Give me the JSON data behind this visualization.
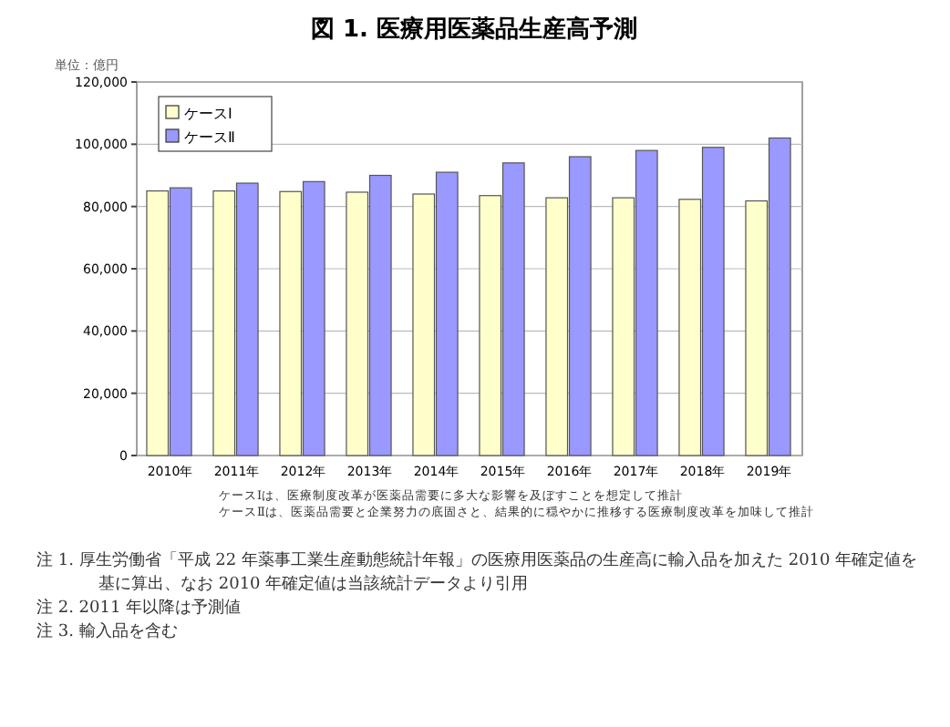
{
  "chart_data": {
    "type": "bar",
    "title": "図 1. 医療用医薬品生産高予測",
    "ylabel": "単位：億円",
    "categories": [
      "2010年",
      "2011年",
      "2012年",
      "2013年",
      "2014年",
      "2015年",
      "2016年",
      "2017年",
      "2018年",
      "2019年"
    ],
    "series": [
      {
        "name": "ケースⅠ",
        "color": "#ffffcc",
        "values": [
          85000,
          85000,
          84800,
          84600,
          84000,
          83500,
          82800,
          82800,
          82300,
          81800
        ]
      },
      {
        "name": "ケースⅡ",
        "color": "#9999ff",
        "values": [
          86000,
          87500,
          88000,
          90000,
          91000,
          94000,
          96000,
          98000,
          99000,
          102000
        ]
      }
    ],
    "ylim": [
      0,
      120000
    ],
    "yticks": [
      {
        "value": 0,
        "label": "0"
      },
      {
        "value": 20000,
        "label": "20,000"
      },
      {
        "value": 40000,
        "label": "40,000"
      },
      {
        "value": 60000,
        "label": "60,000"
      },
      {
        "value": 80000,
        "label": "80,000"
      },
      {
        "value": 100000,
        "label": "100,000"
      },
      {
        "value": 120000,
        "label": "120,000"
      }
    ],
    "grid": "y",
    "legend": "top left",
    "annotations": [
      "ケースⅠは、医療制度改革が医薬品需要に多大な影響を及ぼすことを想定して推計",
      "ケースⅡは、医薬品需要と企業努力の底固さと、結果的に穏やかに推移する医療制度改革を加味して推計",
      "注 1. 厚生労働省「平成 22 年薬事工業生産動態統計年報」の医療用医薬品の生産高に輸入品を加えた 2010 年確定値を基に算出、なお 2010 年確定値は当該統計データより引用",
      "注 2. 2011 年以降は予測値",
      "注 3. 輸入品を含む"
    ]
  }
}
